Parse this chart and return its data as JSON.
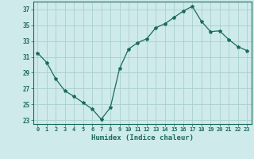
{
  "x": [
    0,
    1,
    2,
    3,
    4,
    5,
    6,
    7,
    8,
    9,
    10,
    11,
    12,
    13,
    14,
    15,
    16,
    17,
    18,
    19,
    20,
    21,
    22,
    23
  ],
  "y": [
    31.5,
    30.3,
    28.2,
    26.7,
    26.0,
    25.2,
    24.4,
    23.1,
    24.6,
    29.5,
    32.0,
    32.8,
    33.3,
    34.7,
    35.2,
    36.0,
    36.8,
    37.4,
    35.5,
    34.2,
    34.3,
    33.2,
    32.3,
    31.8
  ],
  "line_color": "#1a6b5c",
  "marker": "*",
  "marker_size": 3,
  "background_color": "#ceeaea",
  "grid_color": "#aacfcf",
  "axis_color": "#1a6b5c",
  "xlabel": "Humidex (Indice chaleur)",
  "xlim": [
    -0.5,
    23.5
  ],
  "ylim": [
    22.5,
    38
  ],
  "yticks": [
    23,
    25,
    27,
    29,
    31,
    33,
    35,
    37
  ],
  "xticks": [
    0,
    1,
    2,
    3,
    4,
    5,
    6,
    7,
    8,
    9,
    10,
    11,
    12,
    13,
    14,
    15,
    16,
    17,
    18,
    19,
    20,
    21,
    22,
    23
  ],
  "xtick_labels": [
    "0",
    "1",
    "2",
    "3",
    "4",
    "5",
    "6",
    "7",
    "8",
    "9",
    "10",
    "11",
    "12",
    "13",
    "14",
    "15",
    "16",
    "17",
    "18",
    "19",
    "20",
    "21",
    "22",
    "23"
  ]
}
